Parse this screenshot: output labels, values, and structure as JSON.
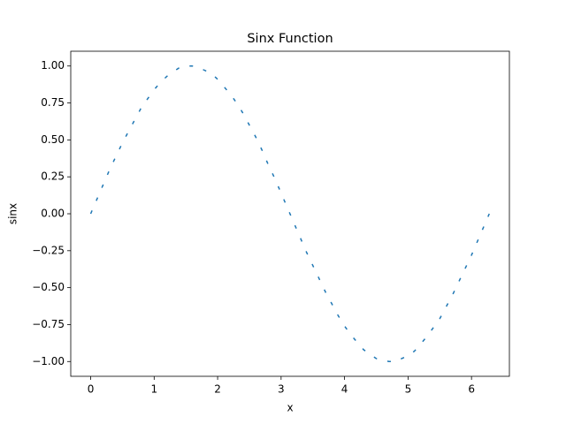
{
  "chart_data": {
    "type": "line",
    "title": "Sinx Function",
    "x_label": "x",
    "y_label": "sinx",
    "x": [
      0,
      0.1,
      0.2,
      0.3,
      0.4,
      0.5,
      0.6,
      0.7,
      0.8,
      0.9,
      1.0,
      1.1,
      1.2,
      1.3,
      1.4,
      1.5,
      1.6,
      1.7,
      1.8,
      1.9,
      2.0,
      2.1,
      2.2,
      2.3,
      2.4,
      2.5,
      2.6,
      2.7,
      2.8,
      2.9,
      3.0,
      3.1,
      3.2,
      3.3,
      3.4,
      3.5,
      3.6,
      3.7,
      3.8,
      3.9,
      4.0,
      4.1,
      4.2,
      4.3,
      4.4,
      4.5,
      4.6,
      4.7,
      4.8,
      4.9,
      5.0,
      5.1,
      5.2,
      5.3,
      5.4,
      5.5,
      5.6,
      5.7,
      5.8,
      5.9,
      6.0,
      6.1,
      6.2,
      6.28
    ],
    "series": [
      {
        "color": "#1f77b4",
        "line_style": "dashed",
        "values": [
          0,
          0.1,
          0.2,
          0.3,
          0.39,
          0.48,
          0.56,
          0.64,
          0.72,
          0.78,
          0.84,
          0.89,
          0.93,
          0.96,
          0.99,
          1.0,
          1.0,
          0.99,
          0.97,
          0.95,
          0.91,
          0.86,
          0.81,
          0.75,
          0.68,
          0.6,
          0.52,
          0.43,
          0.33,
          0.24,
          0.14,
          0.04,
          -0.06,
          -0.16,
          -0.26,
          -0.35,
          -0.44,
          -0.53,
          -0.61,
          -0.69,
          -0.76,
          -0.82,
          -0.87,
          -0.92,
          -0.95,
          -0.98,
          -0.99,
          -1.0,
          -1.0,
          -0.98,
          -0.96,
          -0.93,
          -0.88,
          -0.83,
          -0.77,
          -0.71,
          -0.63,
          -0.55,
          -0.46,
          -0.37,
          -0.28,
          -0.18,
          -0.08,
          0
        ]
      }
    ],
    "xlim": [
      -0.314,
      6.597
    ],
    "ylim": [
      -1.1,
      1.1
    ],
    "xticks": [
      0,
      1,
      2,
      3,
      4,
      5,
      6
    ],
    "yticks": [
      {
        "value": -1,
        "label": "−1.00"
      },
      {
        "value": -0.75,
        "label": "−0.75"
      },
      {
        "value": -0.5,
        "label": "−0.50"
      },
      {
        "value": -0.25,
        "label": "−0.25"
      },
      {
        "value": 0,
        "label": "0.00"
      },
      {
        "value": 0.25,
        "label": "0.25"
      },
      {
        "value": 0.5,
        "label": "0.50"
      },
      {
        "value": 0.75,
        "label": "0.75"
      },
      {
        "value": 1,
        "label": "1.00"
      }
    ],
    "grid": false
  }
}
